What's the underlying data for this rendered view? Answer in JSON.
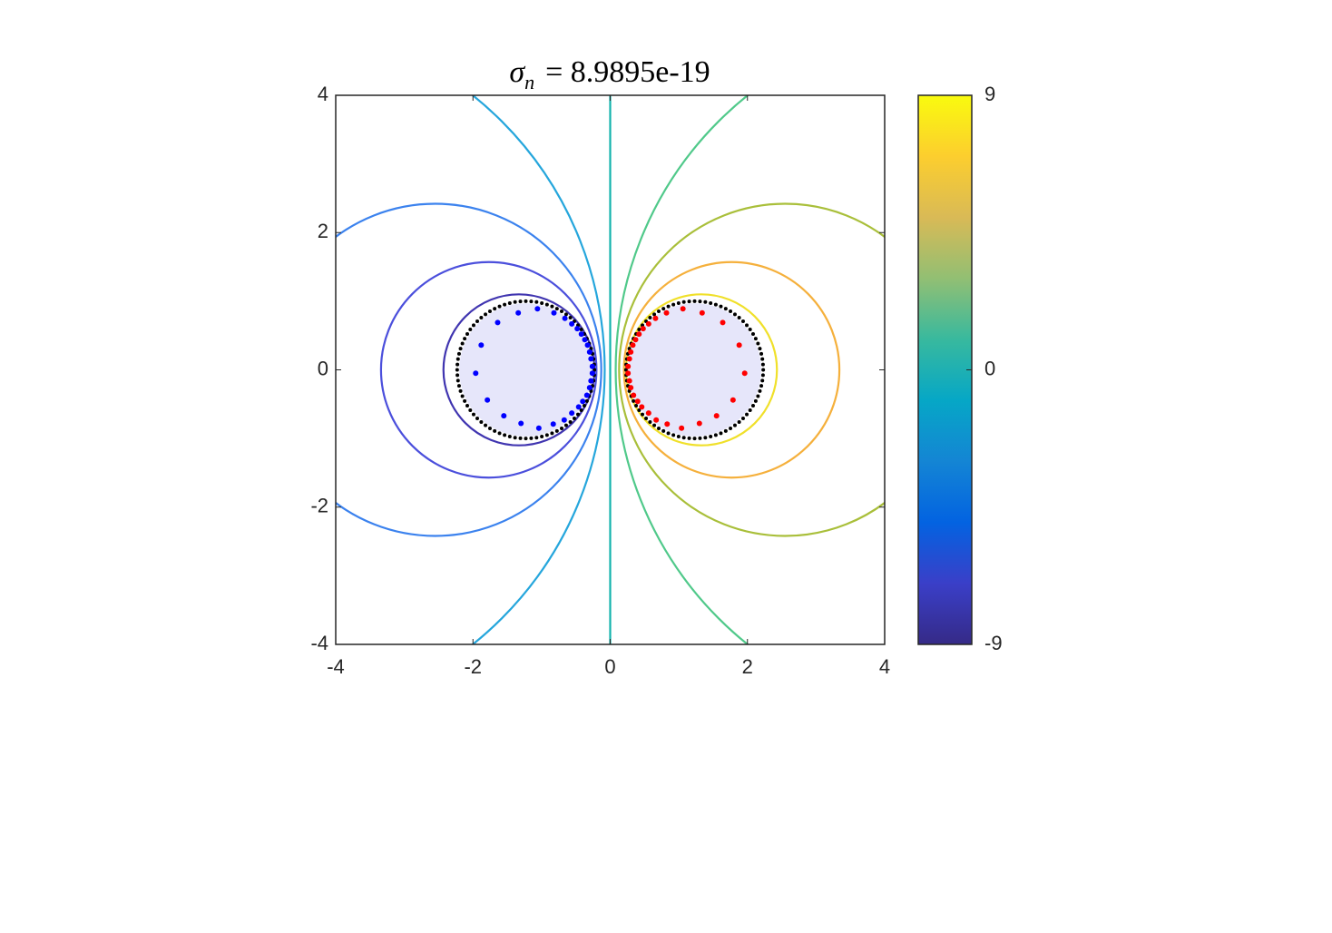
{
  "chart_data": {
    "type": "contour",
    "title_symbol": "σ",
    "title_subscript": "n",
    "title_text": "= 8.9895e-19",
    "xlim": [
      -4,
      4
    ],
    "ylim": [
      -4,
      4
    ],
    "xticks": [
      -4,
      -2,
      0,
      2,
      4
    ],
    "yticks": [
      -4,
      -2,
      0,
      2,
      4
    ],
    "clim": [
      -9,
      9
    ],
    "cticks": [
      -9,
      0,
      9
    ],
    "colormap": [
      "#352a87",
      "#3a3fc8",
      "#0363e1",
      "#1485d4",
      "#06a7c6",
      "#38b99e",
      "#92bf73",
      "#d9ba56",
      "#fcce2e",
      "#f9fb0e"
    ],
    "contours": [
      {
        "level": -8,
        "color": "#4035b0",
        "cx": -1.33,
        "cy": 0,
        "r": 1.1
      },
      {
        "level": -6,
        "color": "#4b4fdc",
        "cx": -1.77,
        "cy": 0,
        "r": 1.57
      },
      {
        "level": -4,
        "color": "#3b82ee",
        "cx": -2.55,
        "cy": 0,
        "r": 2.42
      },
      {
        "level": -2,
        "color": "#25a6dc",
        "cx": -5.2,
        "cy": 0,
        "r": 5.12
      },
      {
        "level": 0,
        "color": "#14b3ad",
        "x": 0
      },
      {
        "level": 2,
        "color": "#50c98a",
        "cx": 5.2,
        "cy": 0,
        "r": 5.12
      },
      {
        "level": 4,
        "color": "#a9bf3a",
        "cx": 2.55,
        "cy": 0,
        "r": 2.42
      },
      {
        "level": 6,
        "color": "#f5b03c",
        "cx": 1.77,
        "cy": 0,
        "r": 1.57
      },
      {
        "level": 8,
        "color": "#f0e02a",
        "cx": 1.33,
        "cy": 0,
        "r": 1.1
      }
    ],
    "regions": [
      {
        "cx": -1.23,
        "cy": 0,
        "r": 1.0,
        "fill": "#e6e6fa",
        "point_count": 80,
        "point_color": "#000000"
      },
      {
        "cx": 1.23,
        "cy": 0,
        "r": 1.0,
        "fill": "#e6e6fa",
        "point_count": 80,
        "point_color": "#000000"
      }
    ],
    "sources": [
      {
        "color": "#0000ff",
        "x": [
          -1.64,
          -1.34,
          -1.06,
          -0.82,
          -0.66,
          -0.56,
          -0.48,
          -0.42,
          -0.37,
          -0.33,
          -0.3,
          -0.28,
          -0.26,
          -0.26,
          -0.28,
          -0.3,
          -0.34,
          -0.4,
          -0.46,
          -0.56,
          -0.67,
          -0.83,
          -1.04,
          -1.3,
          -1.55,
          -1.79,
          -1.96,
          -1.88
        ],
        "y": [
          0.69,
          0.83,
          0.89,
          0.83,
          0.75,
          0.67,
          0.6,
          0.52,
          0.44,
          0.36,
          0.26,
          0.16,
          0.05,
          -0.05,
          -0.16,
          -0.26,
          -0.37,
          -0.46,
          -0.54,
          -0.63,
          -0.73,
          -0.79,
          -0.85,
          -0.78,
          -0.67,
          -0.44,
          -0.05,
          0.36
        ]
      },
      {
        "color": "#ff0000",
        "x": [
          1.64,
          1.34,
          1.06,
          0.82,
          0.66,
          0.56,
          0.48,
          0.42,
          0.37,
          0.33,
          0.3,
          0.28,
          0.26,
          0.26,
          0.28,
          0.3,
          0.34,
          0.4,
          0.46,
          0.56,
          0.67,
          0.83,
          1.04,
          1.3,
          1.55,
          1.79,
          1.96,
          1.88
        ],
        "y": [
          0.69,
          0.83,
          0.89,
          0.83,
          0.75,
          0.67,
          0.6,
          0.52,
          0.44,
          0.36,
          0.26,
          0.16,
          0.05,
          -0.05,
          -0.16,
          -0.26,
          -0.37,
          -0.46,
          -0.54,
          -0.63,
          -0.73,
          -0.79,
          -0.85,
          -0.78,
          -0.67,
          -0.44,
          -0.05,
          0.36
        ]
      }
    ]
  }
}
